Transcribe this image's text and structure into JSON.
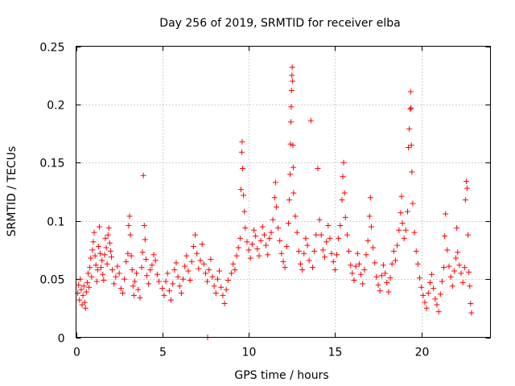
{
  "chart_data": {
    "type": "scatter",
    "title": "Day 256 of 2019, SRMTID for receiver elba",
    "xlabel": "GPS time / hours",
    "ylabel": "SRMTID / TECUs",
    "xlim": [
      0,
      24
    ],
    "ylim": [
      0,
      0.25
    ],
    "x_ticks": [
      0,
      5,
      10,
      15,
      20
    ],
    "x_tick_labels": [
      "0",
      "5",
      "10",
      "15",
      "20"
    ],
    "y_ticks": [
      0,
      0.05,
      0.1,
      0.15,
      0.2,
      0.25
    ],
    "y_tick_labels": [
      "0",
      "0.05",
      "0.1",
      "0.15",
      "0.2",
      "0.25"
    ],
    "grid": true,
    "marker": "plus",
    "series": [
      {
        "name": "SRMTID",
        "color": "#ff0000",
        "points": [
          [
            0.1,
            0.038
          ],
          [
            0.15,
            0.045
          ],
          [
            0.2,
            0.032
          ],
          [
            0.25,
            0.05
          ],
          [
            0.3,
            0.041
          ],
          [
            0.35,
            0.028
          ],
          [
            0.4,
            0.036
          ],
          [
            0.45,
            0.044
          ],
          [
            0.5,
            0.03
          ],
          [
            0.55,
            0.025
          ],
          [
            0.6,
            0.039
          ],
          [
            0.65,
            0.047
          ],
          [
            0.7,
            0.055
          ],
          [
            0.75,
            0.043
          ],
          [
            0.8,
            0.06
          ],
          [
            0.85,
            0.068
          ],
          [
            0.9,
            0.052
          ],
          [
            0.95,
            0.075
          ],
          [
            1.0,
            0.082
          ],
          [
            1.05,
            0.09
          ],
          [
            1.1,
            0.07
          ],
          [
            1.15,
            0.062
          ],
          [
            1.2,
            0.048
          ],
          [
            1.25,
            0.058
          ],
          [
            1.3,
            0.078
          ],
          [
            1.35,
            0.095
          ],
          [
            1.4,
            0.072
          ],
          [
            1.45,
            0.06
          ],
          [
            1.5,
            0.066
          ],
          [
            1.55,
            0.054
          ],
          [
            1.6,
            0.049
          ],
          [
            1.65,
            0.071
          ],
          [
            1.7,
            0.085
          ],
          [
            1.75,
            0.077
          ],
          [
            1.8,
            0.063
          ],
          [
            1.85,
            0.088
          ],
          [
            1.9,
            0.094
          ],
          [
            1.95,
            0.081
          ],
          [
            2.0,
            0.074
          ],
          [
            2.05,
            0.069
          ],
          [
            2.1,
            0.058
          ],
          [
            2.2,
            0.046
          ],
          [
            2.3,
            0.052
          ],
          [
            2.4,
            0.061
          ],
          [
            2.5,
            0.055
          ],
          [
            2.6,
            0.042
          ],
          [
            2.7,
            0.038
          ],
          [
            2.8,
            0.05
          ],
          [
            2.9,
            0.065
          ],
          [
            3.0,
            0.072
          ],
          [
            3.05,
            0.096
          ],
          [
            3.1,
            0.104
          ],
          [
            3.15,
            0.088
          ],
          [
            3.2,
            0.07
          ],
          [
            3.25,
            0.058
          ],
          [
            3.3,
            0.044
          ],
          [
            3.35,
            0.036
          ],
          [
            3.4,
            0.048
          ],
          [
            3.5,
            0.055
          ],
          [
            3.6,
            0.041
          ],
          [
            3.7,
            0.034
          ],
          [
            3.8,
            0.06
          ],
          [
            3.85,
            0.073
          ],
          [
            3.9,
            0.139
          ],
          [
            3.95,
            0.096
          ],
          [
            4.0,
            0.084
          ],
          [
            4.05,
            0.067
          ],
          [
            4.1,
            0.053
          ],
          [
            4.2,
            0.046
          ],
          [
            4.3,
            0.058
          ],
          [
            4.4,
            0.062
          ],
          [
            4.5,
            0.071
          ],
          [
            4.6,
            0.066
          ],
          [
            4.7,
            0.054
          ],
          [
            4.8,
            0.048
          ],
          [
            5.0,
            0.042
          ],
          [
            5.1,
            0.036
          ],
          [
            5.2,
            0.048
          ],
          [
            5.3,
            0.055
          ],
          [
            5.4,
            0.04
          ],
          [
            5.5,
            0.032
          ],
          [
            5.6,
            0.046
          ],
          [
            5.7,
            0.058
          ],
          [
            5.8,
            0.064
          ],
          [
            5.9,
            0.052
          ],
          [
            6.0,
            0.044
          ],
          [
            6.1,
            0.038
          ],
          [
            6.2,
            0.05
          ],
          [
            6.3,
            0.061
          ],
          [
            6.4,
            0.07
          ],
          [
            6.5,
            0.057
          ],
          [
            6.6,
            0.049
          ],
          [
            6.7,
            0.065
          ],
          [
            6.8,
            0.078
          ],
          [
            6.9,
            0.088
          ],
          [
            7.0,
            0.072
          ],
          [
            7.1,
            0.059
          ],
          [
            7.2,
            0.066
          ],
          [
            7.3,
            0.08
          ],
          [
            7.4,
            0.063
          ],
          [
            7.5,
            0.055
          ],
          [
            7.6,
            0.048
          ],
          [
            7.62,
            0.0
          ],
          [
            7.7,
            0.058
          ],
          [
            7.8,
            0.067
          ],
          [
            7.9,
            0.052
          ],
          [
            8.0,
            0.044
          ],
          [
            8.1,
            0.038
          ],
          [
            8.2,
            0.05
          ],
          [
            8.3,
            0.057
          ],
          [
            8.4,
            0.043
          ],
          [
            8.5,
            0.036
          ],
          [
            8.6,
            0.029
          ],
          [
            8.7,
            0.041
          ],
          [
            8.8,
            0.049
          ],
          [
            9.0,
            0.055
          ],
          [
            9.1,
            0.063
          ],
          [
            9.2,
            0.058
          ],
          [
            9.3,
            0.07
          ],
          [
            9.4,
            0.077
          ],
          [
            9.5,
            0.085
          ],
          [
            9.55,
            0.127
          ],
          [
            9.6,
            0.159
          ],
          [
            9.62,
            0.168
          ],
          [
            9.65,
            0.145
          ],
          [
            9.7,
            0.122
          ],
          [
            9.75,
            0.108
          ],
          [
            9.8,
            0.094
          ],
          [
            9.9,
            0.082
          ],
          [
            10.0,
            0.075
          ],
          [
            10.1,
            0.068
          ],
          [
            10.2,
            0.08
          ],
          [
            10.3,
            0.092
          ],
          [
            10.4,
            0.087
          ],
          [
            10.5,
            0.076
          ],
          [
            10.6,
            0.07
          ],
          [
            10.7,
            0.083
          ],
          [
            10.8,
            0.095
          ],
          [
            10.9,
            0.088
          ],
          [
            11.0,
            0.079
          ],
          [
            11.1,
            0.071
          ],
          [
            11.2,
            0.085
          ],
          [
            11.3,
            0.09
          ],
          [
            11.4,
            0.101
          ],
          [
            11.5,
            0.12
          ],
          [
            11.55,
            0.133
          ],
          [
            11.6,
            0.112
          ],
          [
            11.7,
            0.094
          ],
          [
            11.8,
            0.083
          ],
          [
            11.9,
            0.072
          ],
          [
            12.0,
            0.065
          ],
          [
            12.1,
            0.06
          ],
          [
            12.2,
            0.078
          ],
          [
            12.3,
            0.098
          ],
          [
            12.35,
            0.118
          ],
          [
            12.4,
            0.14
          ],
          [
            12.42,
            0.166
          ],
          [
            12.44,
            0.185
          ],
          [
            12.46,
            0.198
          ],
          [
            12.48,
            0.212
          ],
          [
            12.5,
            0.225
          ],
          [
            12.52,
            0.232
          ],
          [
            12.54,
            0.22
          ],
          [
            12.56,
            0.165
          ],
          [
            12.58,
            0.146
          ],
          [
            12.6,
            0.124
          ],
          [
            12.7,
            0.104
          ],
          [
            12.8,
            0.09
          ],
          [
            12.9,
            0.074
          ],
          [
            13.0,
            0.063
          ],
          [
            13.1,
            0.058
          ],
          [
            13.2,
            0.072
          ],
          [
            13.3,
            0.085
          ],
          [
            13.4,
            0.079
          ],
          [
            13.5,
            0.066
          ],
          [
            13.6,
            0.186
          ],
          [
            13.7,
            0.06
          ],
          [
            13.8,
            0.074
          ],
          [
            13.9,
            0.088
          ],
          [
            14.0,
            0.145
          ],
          [
            14.1,
            0.101
          ],
          [
            14.2,
            0.088
          ],
          [
            14.3,
            0.075
          ],
          [
            14.4,
            0.069
          ],
          [
            14.5,
            0.082
          ],
          [
            14.6,
            0.096
          ],
          [
            14.7,
            0.085
          ],
          [
            14.8,
            0.072
          ],
          [
            14.9,
            0.065
          ],
          [
            15.0,
            0.058
          ],
          [
            15.1,
            0.071
          ],
          [
            15.2,
            0.085
          ],
          [
            15.3,
            0.096
          ],
          [
            15.4,
            0.118
          ],
          [
            15.45,
            0.138
          ],
          [
            15.5,
            0.15
          ],
          [
            15.55,
            0.124
          ],
          [
            15.6,
            0.103
          ],
          [
            15.7,
            0.088
          ],
          [
            15.8,
            0.074
          ],
          [
            15.9,
            0.062
          ],
          [
            16.0,
            0.055
          ],
          [
            16.1,
            0.049
          ],
          [
            16.2,
            0.061
          ],
          [
            16.3,
            0.072
          ],
          [
            16.4,
            0.063
          ],
          [
            16.5,
            0.054
          ],
          [
            16.6,
            0.046
          ],
          [
            16.7,
            0.058
          ],
          [
            16.8,
            0.071
          ],
          [
            16.9,
            0.083
          ],
          [
            17.0,
            0.104
          ],
          [
            17.05,
            0.12
          ],
          [
            17.1,
            0.095
          ],
          [
            17.2,
            0.077
          ],
          [
            17.3,
            0.064
          ],
          [
            17.4,
            0.052
          ],
          [
            17.5,
            0.045
          ],
          [
            17.6,
            0.04
          ],
          [
            17.7,
            0.053
          ],
          [
            17.8,
            0.062
          ],
          [
            17.9,
            0.055
          ],
          [
            18.0,
            0.047
          ],
          [
            18.1,
            0.039
          ],
          [
            18.2,
            0.051
          ],
          [
            18.3,
            0.063
          ],
          [
            18.4,
            0.074
          ],
          [
            18.5,
            0.066
          ],
          [
            18.6,
            0.079
          ],
          [
            18.7,
            0.092
          ],
          [
            18.8,
            0.107
          ],
          [
            18.85,
            0.121
          ],
          [
            18.9,
            0.098
          ],
          [
            19.0,
            0.085
          ],
          [
            19.1,
            0.092
          ],
          [
            19.2,
            0.108
          ],
          [
            19.25,
            0.163
          ],
          [
            19.3,
            0.179
          ],
          [
            19.35,
            0.196
          ],
          [
            19.38,
            0.211
          ],
          [
            19.4,
            0.197
          ],
          [
            19.42,
            0.165
          ],
          [
            19.45,
            0.142
          ],
          [
            19.5,
            0.115
          ],
          [
            19.6,
            0.09
          ],
          [
            19.7,
            0.074
          ],
          [
            19.8,
            0.063
          ],
          [
            19.9,
            0.051
          ],
          [
            20.0,
            0.043
          ],
          [
            20.1,
            0.036
          ],
          [
            20.2,
            0.03
          ],
          [
            20.3,
            0.025
          ],
          [
            20.4,
            0.038
          ],
          [
            20.5,
            0.047
          ],
          [
            20.6,
            0.054
          ],
          [
            20.7,
            0.042
          ],
          [
            20.8,
            0.033
          ],
          [
            20.9,
            0.028
          ],
          [
            21.0,
            0.022
          ],
          [
            21.1,
            0.037
          ],
          [
            21.2,
            0.048
          ],
          [
            21.3,
            0.06
          ],
          [
            21.35,
            0.087
          ],
          [
            21.4,
            0.106
          ],
          [
            21.5,
            0.075
          ],
          [
            21.6,
            0.061
          ],
          [
            21.7,
            0.052
          ],
          [
            21.8,
            0.044
          ],
          [
            21.9,
            0.057
          ],
          [
            22.0,
            0.068
          ],
          [
            22.05,
            0.094
          ],
          [
            22.1,
            0.073
          ],
          [
            22.2,
            0.062
          ],
          [
            22.3,
            0.055
          ],
          [
            22.4,
            0.047
          ],
          [
            22.5,
            0.06
          ],
          [
            22.55,
            0.118
          ],
          [
            22.6,
            0.134
          ],
          [
            22.65,
            0.128
          ],
          [
            22.7,
            0.088
          ],
          [
            22.75,
            0.056
          ],
          [
            22.8,
            0.044
          ],
          [
            22.85,
            0.029
          ],
          [
            22.9,
            0.021
          ]
        ]
      }
    ]
  }
}
